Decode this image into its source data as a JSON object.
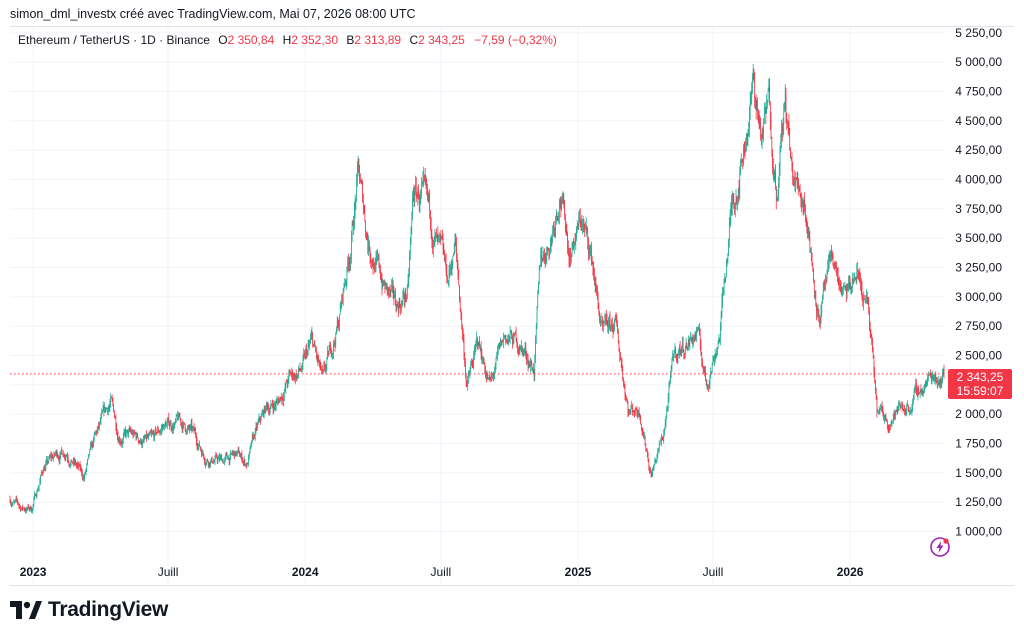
{
  "header": {
    "attribution": "simon_dml_investx créé avec TradingView.com, Mai 07, 2026 08:00 UTC"
  },
  "legend": {
    "symbol": "Ethereum / TetherUS · 1D · Binance",
    "open_label": "O",
    "open": "2 350,84",
    "high_label": "H",
    "high": "2 352,30",
    "low_label": "B",
    "low": "2 313,89",
    "close_label": "C",
    "close": "2 343,25",
    "change": "−7,59 (−0,32%)"
  },
  "price_tag": {
    "price": "2 343,25",
    "countdown": "15:59:07"
  },
  "brand": {
    "name": "TradingView"
  },
  "colors": {
    "up": "#22ab94",
    "down": "#f23645",
    "grid": "#f0f3fa",
    "text": "#131722"
  },
  "icons": {
    "logo": "tradingview-logo-icon",
    "alert": "lightning-bolt-icon"
  },
  "chart_data": {
    "type": "candlestick",
    "title": "Ethereum / TetherUS · 1D · Binance",
    "x_tick_labels": [
      "2023",
      "Juill",
      "2024",
      "Juill",
      "2025",
      "Juill",
      "2026"
    ],
    "x_tick_dates": [
      "2023-01-01",
      "2023-07-01",
      "2024-01-01",
      "2024-07-01",
      "2025-01-01",
      "2025-07-01",
      "2026-01-01"
    ],
    "xlim": [
      "2022-12-01",
      "2026-05-07"
    ],
    "y_tick_labels": [
      "1 000,00",
      "1 250,00",
      "1 500,00",
      "1 750,00",
      "2 000,00",
      "2 250,00",
      "2 500,00",
      "2 750,00",
      "3 000,00",
      "3 250,00",
      "3 500,00",
      "3 750,00",
      "4 000,00",
      "4 250,00",
      "4 500,00",
      "4 750,00",
      "5 000,00",
      "5 250,00"
    ],
    "y_ticks": [
      1000,
      1250,
      1500,
      1750,
      2000,
      2250,
      2500,
      2750,
      3000,
      3250,
      3500,
      3750,
      4000,
      4250,
      4500,
      4750,
      5000,
      5250
    ],
    "ylim": [
      800,
      5300
    ],
    "last_price": 2343.25,
    "grid": true,
    "price_path": [
      [
        "2022-12-01",
        1280
      ],
      [
        "2022-12-15",
        1200
      ],
      [
        "2022-12-30",
        1195
      ],
      [
        "2023-01-15",
        1550
      ],
      [
        "2023-02-01",
        1650
      ],
      [
        "2023-02-15",
        1700
      ],
      [
        "2023-03-10",
        1450
      ],
      [
        "2023-03-25",
        1780
      ],
      [
        "2023-04-15",
        2100
      ],
      [
        "2023-04-25",
        1850
      ],
      [
        "2023-05-15",
        1800
      ],
      [
        "2023-06-10",
        1750
      ],
      [
        "2023-06-25",
        1900
      ],
      [
        "2023-07-15",
        1930
      ],
      [
        "2023-08-01",
        1850
      ],
      [
        "2023-08-20",
        1650
      ],
      [
        "2023-09-10",
        1600
      ],
      [
        "2023-10-01",
        1650
      ],
      [
        "2023-10-15",
        1580
      ],
      [
        "2023-10-25",
        1800
      ],
      [
        "2023-11-10",
        2050
      ],
      [
        "2023-11-25",
        2100
      ],
      [
        "2023-12-10",
        2300
      ],
      [
        "2023-12-28",
        2380
      ],
      [
        "2024-01-10",
        2600
      ],
      [
        "2024-01-25",
        2250
      ],
      [
        "2024-02-15",
        2800
      ],
      [
        "2024-03-01",
        3400
      ],
      [
        "2024-03-12",
        4050
      ],
      [
        "2024-03-25",
        3500
      ],
      [
        "2024-04-15",
        3100
      ],
      [
        "2024-05-01",
        2900
      ],
      [
        "2024-05-18",
        3050
      ],
      [
        "2024-05-25",
        3850
      ],
      [
        "2024-06-05",
        3850
      ],
      [
        "2024-06-25",
        3450
      ],
      [
        "2024-07-10",
        3100
      ],
      [
        "2024-07-20",
        3450
      ],
      [
        "2024-08-05",
        2250
      ],
      [
        "2024-08-20",
        2600
      ],
      [
        "2024-09-06",
        2250
      ],
      [
        "2024-09-25",
        2650
      ],
      [
        "2024-10-15",
        2600
      ],
      [
        "2024-11-03",
        2400
      ],
      [
        "2024-11-12",
        3300
      ],
      [
        "2024-11-25",
        3500
      ],
      [
        "2024-12-08",
        3950
      ],
      [
        "2024-12-20",
        3400
      ],
      [
        "2025-01-06",
        3650
      ],
      [
        "2025-01-20",
        3300
      ],
      [
        "2025-02-03",
        2650
      ],
      [
        "2025-02-20",
        2750
      ],
      [
        "2025-03-10",
        2050
      ],
      [
        "2025-03-25",
        2050
      ],
      [
        "2025-04-09",
        1500
      ],
      [
        "2025-04-25",
        1800
      ],
      [
        "2025-05-10",
        2500
      ],
      [
        "2025-06-10",
        2700
      ],
      [
        "2025-06-22",
        2250
      ],
      [
        "2025-07-10",
        2700
      ],
      [
        "2025-07-25",
        3700
      ],
      [
        "2025-08-10",
        4250
      ],
      [
        "2025-08-24",
        4800
      ],
      [
        "2025-09-05",
        4350
      ],
      [
        "2025-09-14",
        4650
      ],
      [
        "2025-09-25",
        3950
      ],
      [
        "2025-10-06",
        4650
      ],
      [
        "2025-10-15",
        4000
      ],
      [
        "2025-11-01",
        3850
      ],
      [
        "2025-11-20",
        2850
      ],
      [
        "2025-12-10",
        3300
      ],
      [
        "2025-12-25",
        2950
      ],
      [
        "2026-01-10",
        3200
      ],
      [
        "2026-01-25",
        2900
      ],
      [
        "2026-02-06",
        2000
      ],
      [
        "2026-02-20",
        1950
      ],
      [
        "2026-03-10",
        2050
      ],
      [
        "2026-03-25",
        2100
      ],
      [
        "2026-04-10",
        2250
      ],
      [
        "2026-04-25",
        2350
      ],
      [
        "2026-05-07",
        2343
      ]
    ]
  }
}
